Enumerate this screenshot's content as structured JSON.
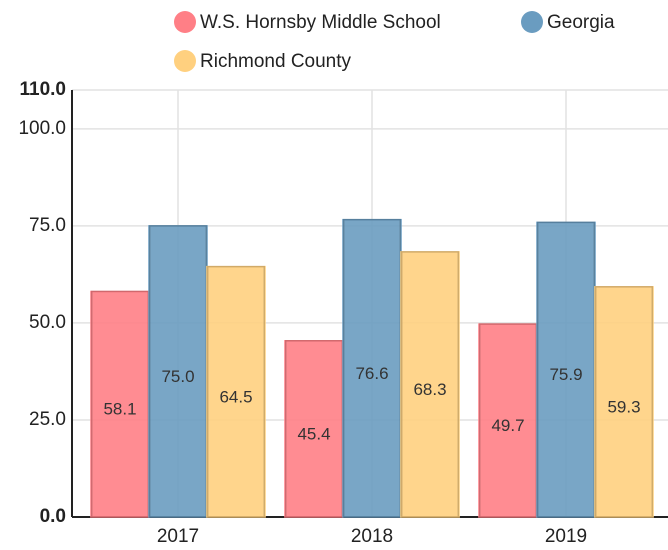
{
  "chart_data": {
    "type": "bar",
    "categories": [
      "2017",
      "2018",
      "2019"
    ],
    "series": [
      {
        "name": "W.S. Hornsby Middle School",
        "color": "#ff7f86",
        "values": [
          58.1,
          45.4,
          49.7
        ],
        "value_labels": [
          "58.1",
          "45.4",
          "49.7"
        ]
      },
      {
        "name": "Georgia",
        "color": "#6a9cc0",
        "values": [
          75.0,
          76.6,
          75.9
        ],
        "value_labels": [
          "75.0",
          "76.6",
          "75.9"
        ]
      },
      {
        "name": "Richmond County",
        "color": "#ffd07f",
        "values": [
          64.5,
          68.3,
          59.3
        ],
        "value_labels": [
          "64.5",
          "68.3",
          "59.3"
        ]
      }
    ],
    "ylim": [
      0,
      110
    ],
    "yticks": [
      {
        "value": 0,
        "label": "0.0"
      },
      {
        "value": 25,
        "label": "25.0"
      },
      {
        "value": 50,
        "label": "50.0"
      },
      {
        "value": 75,
        "label": "75.0"
      },
      {
        "value": 100,
        "label": "100.0"
      },
      {
        "value": 110,
        "label": "110.0"
      }
    ],
    "grid": true
  }
}
